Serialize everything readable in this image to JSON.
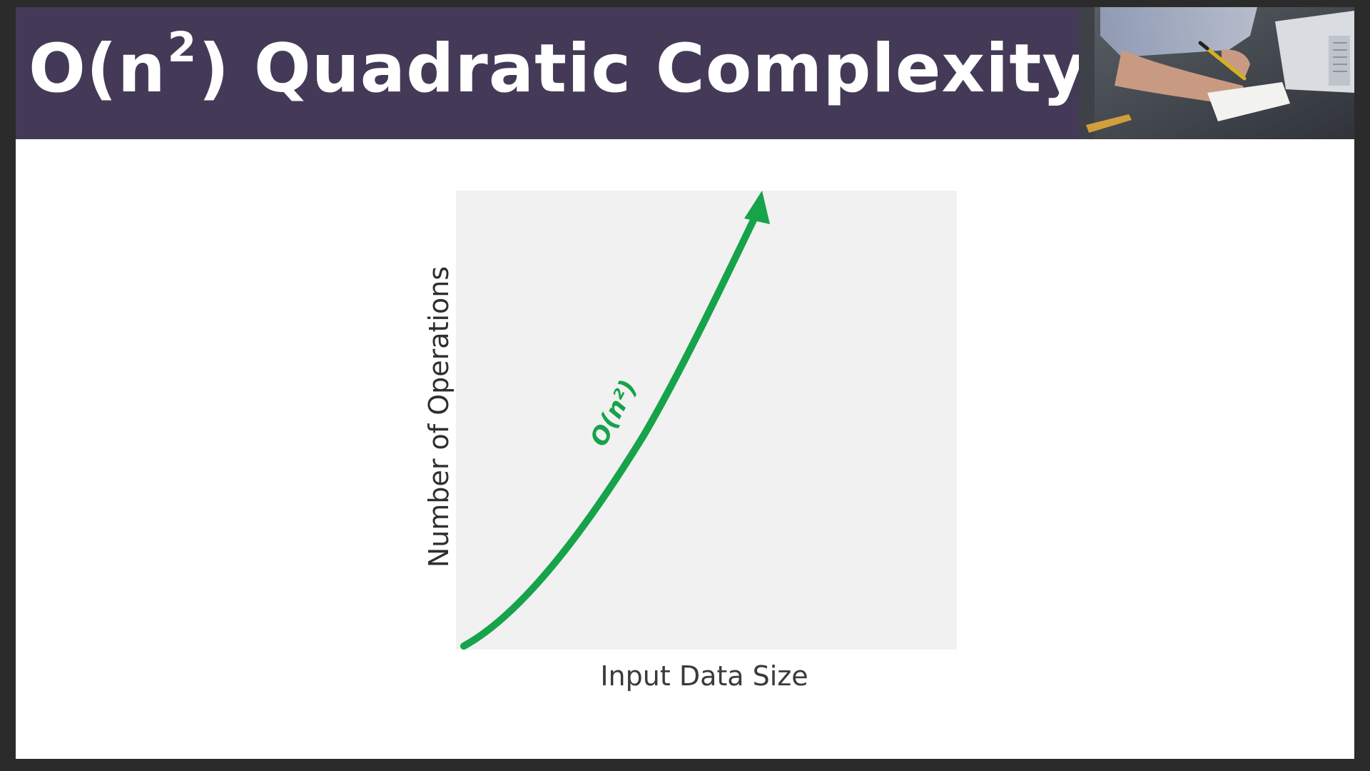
{
  "title": {
    "prefix": "O(n",
    "superscript": "2",
    "suffix": ") Quadratic Complexity"
  },
  "photo": {
    "icon": "person-writing-at-laptop-photo"
  },
  "chart_data": {
    "type": "line",
    "xlabel": "Input Data Size",
    "ylabel": "Number of Operations",
    "curve_label": "O(n²)",
    "curve_color": "#16a34a",
    "plot_background": "#f1f1f1",
    "grid": false,
    "axis_ticks": false
  },
  "colors": {
    "title_bar": "#443a58",
    "frame": "#2b2b2b",
    "title_text": "#ffffff"
  }
}
